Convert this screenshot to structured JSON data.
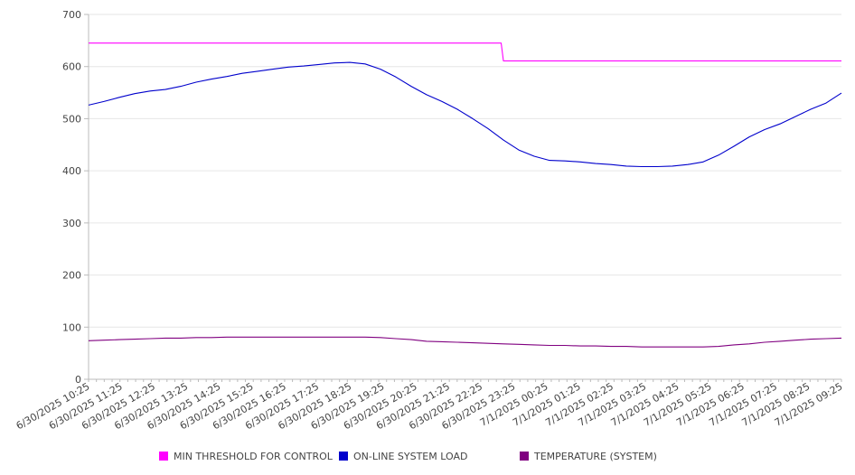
{
  "chart_data": {
    "type": "line",
    "title": "",
    "xlabel": "",
    "ylabel": "",
    "ylim": [
      0,
      700
    ],
    "yticks": [
      0,
      100,
      200,
      300,
      400,
      500,
      600,
      700
    ],
    "grid": true,
    "legend_position": "bottom",
    "xtick_labels": [
      "6/30/2025 10:25",
      "6/30/2025 11:25",
      "6/30/2025 12:25",
      "6/30/2025 13:25",
      "6/30/2025 14:25",
      "6/30/2025 15:25",
      "6/30/2025 16:25",
      "6/30/2025 17:25",
      "6/30/2025 18:25",
      "6/30/2025 19:25",
      "6/30/2025 20:25",
      "6/30/2025 21:25",
      "6/30/2025 22:25",
      "6/30/2025 23:25",
      "7/1/2025 00:25",
      "7/1/2025 01:25",
      "7/1/2025 02:25",
      "7/1/2025 03:25",
      "7/1/2025 04:25",
      "7/1/2025 05:25",
      "7/1/2025 06:25",
      "7/1/2025 07:25",
      "7/1/2025 08:25",
      "7/1/2025 09:25"
    ],
    "series": [
      {
        "name": "MIN THRESHOLD FOR CONTROL",
        "color": "#ff00ff",
        "values": [
          645,
          645,
          645,
          645,
          645,
          645,
          645,
          645,
          645,
          645,
          645,
          645,
          645,
          645,
          645,
          645,
          645,
          645,
          645,
          645,
          645,
          645,
          645,
          645,
          645,
          645,
          645,
          611,
          611,
          611,
          611,
          611,
          611,
          611,
          611,
          611,
          611,
          611,
          611,
          611,
          611,
          611,
          611,
          611,
          611,
          611,
          611,
          611,
          611,
          611
        ]
      },
      {
        "name": "ON-LINE SYSTEM LOAD",
        "color": "#0000cc",
        "values": [
          526,
          533,
          541,
          548,
          553,
          556,
          562,
          570,
          576,
          581,
          587,
          591,
          595,
          599,
          601,
          604,
          607,
          608,
          605,
          595,
          580,
          562,
          546,
          533,
          518,
          500,
          481,
          459,
          440,
          428,
          420,
          419,
          417,
          414,
          412,
          409,
          408,
          408,
          409,
          412,
          417,
          430,
          447,
          465,
          479,
          490,
          504,
          518,
          530,
          549
        ]
      },
      {
        "name": "TEMPERATURE (SYSTEM)",
        "color": "#800080",
        "values": [
          74,
          75,
          76,
          77,
          78,
          79,
          79,
          80,
          80,
          81,
          81,
          81,
          81,
          81,
          81,
          81,
          81,
          81,
          81,
          80,
          78,
          76,
          73,
          72,
          71,
          70,
          69,
          68,
          67,
          66,
          65,
          65,
          64,
          64,
          63,
          63,
          62,
          62,
          62,
          62,
          62,
          63,
          66,
          68,
          71,
          73,
          75,
          77,
          78,
          79
        ]
      }
    ]
  }
}
